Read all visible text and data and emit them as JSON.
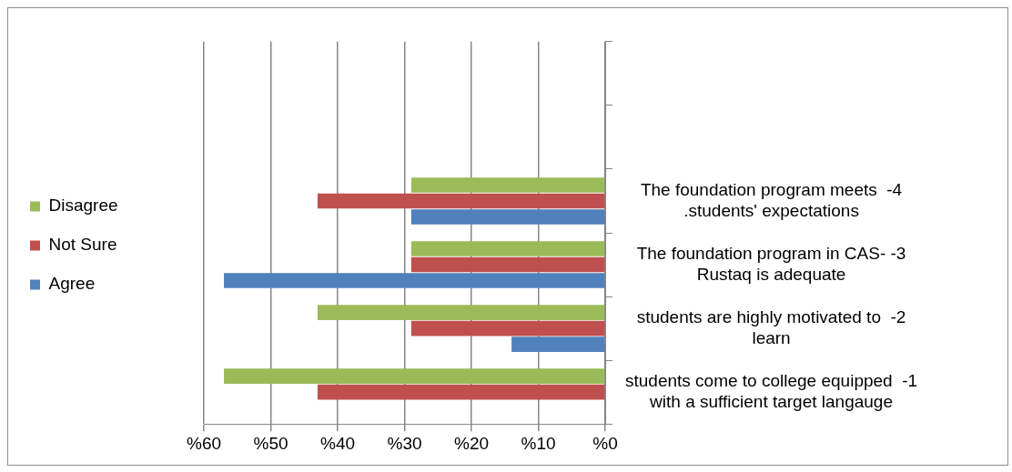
{
  "chart_data": {
    "type": "bar",
    "orientation": "horizontal",
    "categories": [
      null,
      null,
      "The foundation program meets  -4\n.students' expectations",
      "The foundation program in CAS- -3\nRustaq is adequate",
      "students are highly motivated to  -2\nlearn",
      "students come to college equipped  -1\nwith a sufficient target langauge"
    ],
    "series": [
      {
        "name": "Disagree",
        "color": "#9bbb59",
        "values": [
          null,
          null,
          29,
          29,
          43,
          57
        ]
      },
      {
        "name": "Not Sure",
        "color": "#c0504d",
        "values": [
          null,
          null,
          43,
          29,
          29,
          43
        ]
      },
      {
        "name": "Agree",
        "color": "#4f81bd",
        "values": [
          null,
          null,
          29,
          57,
          14,
          0
        ]
      }
    ],
    "xlim": [
      60,
      0
    ],
    "xticks": [
      {
        "value": 60,
        "label": "%60"
      },
      {
        "value": 50,
        "label": "%50"
      },
      {
        "value": 40,
        "label": "%40"
      },
      {
        "value": 30,
        "label": "%30"
      },
      {
        "value": 20,
        "label": "%20"
      },
      {
        "value": 10,
        "label": "%10"
      },
      {
        "value": 0,
        "label": "%0"
      }
    ],
    "grid": "x",
    "legend": "left"
  }
}
